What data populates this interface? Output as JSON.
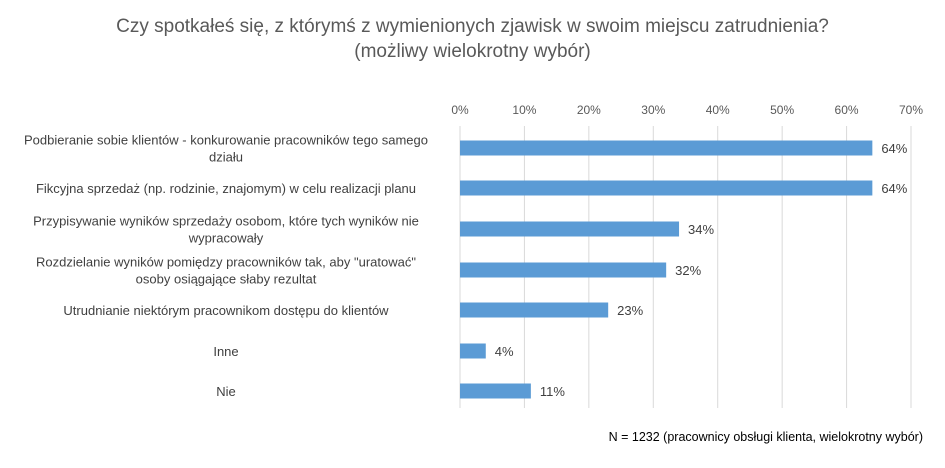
{
  "chart_data": {
    "type": "bar",
    "orientation": "horizontal",
    "title": "Czy spotkałeś się, z którymś z wymienionych zjawisk w swoim miejscu zatrudnienia?",
    "subtitle": "(możliwy wielokrotny wybór)",
    "categories": [
      [
        "Podbieranie sobie klientów - konkurowanie pracowników tego samego",
        "działu"
      ],
      [
        "Fikcyjna sprzedaż (np. rodzinie, znajomym) w celu realizacji planu"
      ],
      [
        "Przypisywanie wyników sprzedaży osobom, które tych wyników nie",
        "wypracowały"
      ],
      [
        "Rozdzielanie wyników pomiędzy pracowników tak, aby \"uratować\"",
        "osoby osiągające słaby rezultat"
      ],
      [
        "Utrudnianie niektórym pracownikom dostępu do klientów"
      ],
      [
        "Inne"
      ],
      [
        "Nie"
      ]
    ],
    "values": [
      64,
      64,
      34,
      32,
      23,
      4,
      11
    ],
    "value_labels": [
      "64%",
      "64%",
      "34%",
      "32%",
      "23%",
      "4%",
      "11%"
    ],
    "x_ticks": [
      "0%",
      "10%",
      "20%",
      "30%",
      "40%",
      "50%",
      "60%",
      "70%"
    ],
    "xlim": [
      0,
      70
    ],
    "xaxis_position": "top",
    "grid": true,
    "bar_color": "#5b9bd5",
    "gridline_color": "#d9d9d9",
    "legend": "none"
  },
  "note": "N = 1232 (pracownicy obsługi klienta, wielokrotny wybór)"
}
